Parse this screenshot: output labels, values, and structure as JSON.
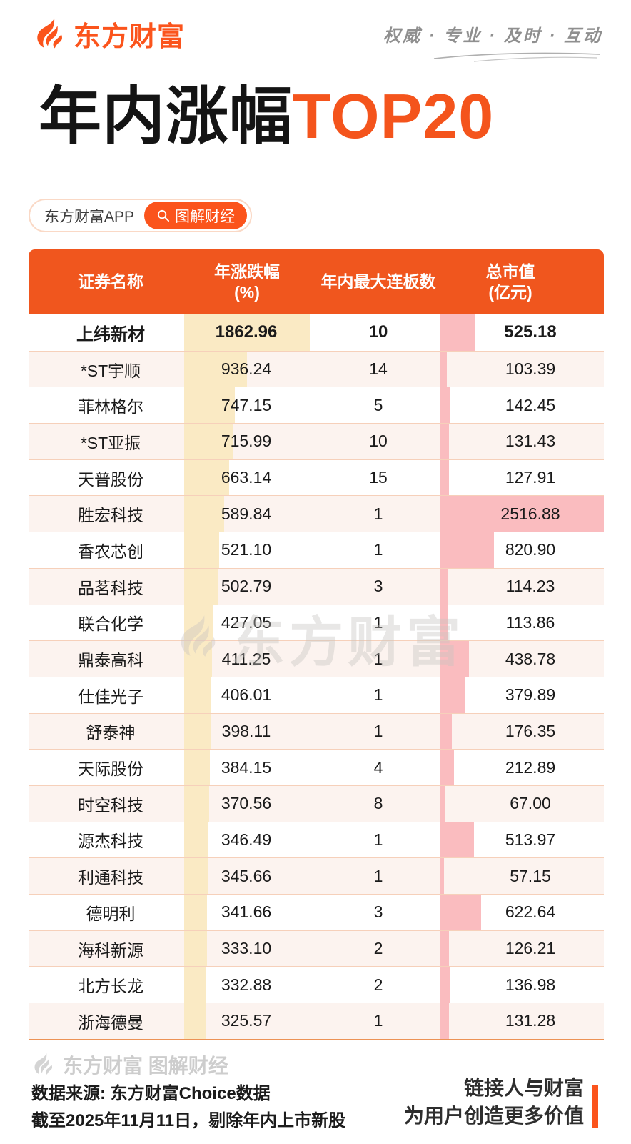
{
  "page": {
    "brand": {
      "logo_text": "东方财富",
      "slogan": "权威 · 专业 · 及时 · 互动"
    },
    "title": {
      "main": "年内涨幅",
      "highlight": "TOP20"
    },
    "badge": {
      "app": "东方财富APP",
      "tag": "图解财经"
    },
    "watermark": "东方财富",
    "footer": {
      "logo_text": "东方财富 图解财经",
      "source_line1": "数据来源: 东方财富Choice数据",
      "source_line2": "截至2025年11月11日，剔除年内上市新股",
      "tagline_line1": "链接人与财富",
      "tagline_line2": "为用户创造更多价值"
    },
    "colors": {
      "brand_orange": "#FB541C",
      "table_header_orange": "#F0561E",
      "title_highlight": "#F4541C",
      "change_bar_yellow": "#FAEAC4",
      "mcap_bar_pink": "#FABCBF",
      "alt_row_bg": "#FCF3EF",
      "row_divider": "#F6D0BA",
      "footer_gray": "#CDCDCD",
      "text_dark": "#1A1A1A"
    }
  },
  "table": {
    "headers": [
      [
        "证券名称"
      ],
      [
        "年涨跌幅",
        "(%)"
      ],
      [
        "年内最大连板数"
      ],
      [
        "总市值",
        "(亿元)"
      ]
    ]
  },
  "chart_data": {
    "type": "table",
    "title": "年内涨幅TOP20",
    "columns": [
      "证券名称",
      "年涨跌幅(%)",
      "年内最大连板数",
      "总市值(亿元)"
    ],
    "rows": [
      [
        "上纬新材",
        1862.96,
        10,
        525.18
      ],
      [
        "*ST宇顺",
        936.24,
        14,
        103.39
      ],
      [
        "菲林格尔",
        747.15,
        5,
        142.45
      ],
      [
        "*ST亚振",
        715.99,
        10,
        131.43
      ],
      [
        "天普股份",
        663.14,
        15,
        127.91
      ],
      [
        "胜宏科技",
        589.84,
        1,
        2516.88
      ],
      [
        "香农芯创",
        521.1,
        1,
        820.9
      ],
      [
        "品茗科技",
        502.79,
        3,
        114.23
      ],
      [
        "联合化学",
        427.05,
        1,
        113.86
      ],
      [
        "鼎泰高科",
        411.25,
        1,
        438.78
      ],
      [
        "仕佳光子",
        406.01,
        1,
        379.89
      ],
      [
        "舒泰神",
        398.11,
        1,
        176.35
      ],
      [
        "天际股份",
        384.15,
        4,
        212.89
      ],
      [
        "时空科技",
        370.56,
        8,
        67.0
      ],
      [
        "源杰科技",
        346.49,
        1,
        513.97
      ],
      [
        "利通科技",
        345.66,
        1,
        57.15
      ],
      [
        "德明利",
        341.66,
        3,
        622.64
      ],
      [
        "海科新源",
        333.1,
        2,
        126.21
      ],
      [
        "北方长龙",
        332.88,
        2,
        136.98
      ],
      [
        "浙海德曼",
        325.57,
        1,
        131.28
      ]
    ],
    "bar_columns": {
      "change_bar": {
        "column": "年涨跌幅(%)",
        "max_value": 1862.96
      },
      "mcap_bar": {
        "column": "总市值(亿元)",
        "max_value": 2516.88
      }
    },
    "layout_hints": {
      "first_row_emphasized": true,
      "alternate_row_shading": true
    }
  }
}
